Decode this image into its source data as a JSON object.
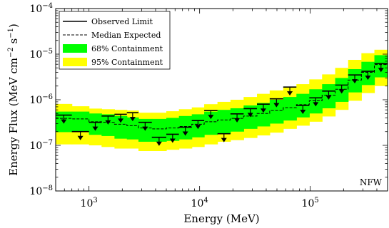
{
  "chart_data": {
    "type": "line",
    "x_scale": "log",
    "y_scale": "log",
    "xlim": [
      500,
      500000
    ],
    "ylim": [
      1e-08,
      0.0001
    ],
    "xlabel": "Energy (MeV)",
    "ylabel": {
      "main": "Energy Flux (MeV cm",
      "exp1": "−2",
      "mid": " s",
      "exp2": "−1",
      "end": ")"
    },
    "annotation": "NFW",
    "x_ticks": [
      {
        "value": 1000,
        "base": "10",
        "exp": "3"
      },
      {
        "value": 10000,
        "base": "10",
        "exp": "4"
      },
      {
        "value": 100000,
        "base": "10",
        "exp": "5"
      }
    ],
    "y_ticks": [
      {
        "value": 1e-08,
        "base": "10",
        "exp": "−8"
      },
      {
        "value": 1e-07,
        "base": "10",
        "exp": "−7"
      },
      {
        "value": 1e-06,
        "base": "10",
        "exp": "−6"
      },
      {
        "value": 1e-05,
        "base": "10",
        "exp": "−5"
      },
      {
        "value": 0.0001,
        "base": "10",
        "exp": "−4"
      }
    ],
    "legend": {
      "position": "top-left",
      "entries": [
        {
          "label": "Observed Limit",
          "style": "solid"
        },
        {
          "label": "Median Expected",
          "style": "dashed"
        },
        {
          "label": "68% Containment",
          "style": "band",
          "color": "#00ff00"
        },
        {
          "label": "95% Containment",
          "style": "band",
          "color": "#ffff00"
        }
      ]
    },
    "bins": [
      {
        "lo": 500,
        "hi": 700,
        "observed": 4.6e-07,
        "median": 3.9e-07,
        "b68_lo": 1.95e-07,
        "b68_hi": 5.5e-07,
        "b95_lo": 1.05e-07,
        "b95_hi": 8.1e-07
      },
      {
        "lo": 700,
        "hi": 1000,
        "observed": 2e-07,
        "median": 3.8e-07,
        "b68_lo": 1.95e-07,
        "b68_hi": 5.5e-07,
        "b95_lo": 1.05e-07,
        "b95_hi": 7.2e-07
      },
      {
        "lo": 1000,
        "hi": 1300,
        "observed": 3.2e-07,
        "median": 3.3e-07,
        "b68_lo": 1.7e-07,
        "b68_hi": 5e-07,
        "b95_lo": 1e-07,
        "b95_hi": 6.4e-07
      },
      {
        "lo": 1300,
        "hi": 1700,
        "observed": 4.4e-07,
        "median": 3.2e-07,
        "b68_lo": 1.6e-07,
        "b68_hi": 4.8e-07,
        "b95_lo": 9.2e-08,
        "b95_hi": 6.2e-07
      },
      {
        "lo": 1700,
        "hi": 2200,
        "observed": 4.8e-07,
        "median": 2.9e-07,
        "b68_lo": 1.4e-07,
        "b68_hi": 4.4e-07,
        "b95_lo": 8.5e-08,
        "b95_hi": 6e-07
      },
      {
        "lo": 2200,
        "hi": 2800,
        "observed": 5.2e-07,
        "median": 2.7e-07,
        "b68_lo": 1.35e-07,
        "b68_hi": 4.1e-07,
        "b95_lo": 8.5e-08,
        "b95_hi": 5.8e-07
      },
      {
        "lo": 2800,
        "hi": 3700,
        "observed": 3.2e-07,
        "median": 2.4e-07,
        "b68_lo": 1.2e-07,
        "b68_hi": 3.8e-07,
        "b95_lo": 7.5e-08,
        "b95_hi": 5.2e-07
      },
      {
        "lo": 3700,
        "hi": 5000,
        "observed": 1.5e-07,
        "median": 2.3e-07,
        "b68_lo": 1.2e-07,
        "b68_hi": 3.8e-07,
        "b95_lo": 7.5e-08,
        "b95_hi": 5.2e-07
      },
      {
        "lo": 5000,
        "hi": 6500,
        "observed": 1.75e-07,
        "median": 2.4e-07,
        "b68_lo": 1.25e-07,
        "b68_hi": 4e-07,
        "b95_lo": 8e-08,
        "b95_hi": 5.6e-07
      },
      {
        "lo": 6500,
        "hi": 8500,
        "observed": 2.5e-07,
        "median": 2.6e-07,
        "b68_lo": 1.35e-07,
        "b68_hi": 4.4e-07,
        "b95_lo": 8.5e-08,
        "b95_hi": 6.2e-07
      },
      {
        "lo": 8500,
        "hi": 11000,
        "observed": 3.5e-07,
        "median": 2.9e-07,
        "b68_lo": 1.5e-07,
        "b68_hi": 4.8e-07,
        "b95_lo": 9.2e-08,
        "b95_hi": 6.8e-07
      },
      {
        "lo": 11000,
        "hi": 14500,
        "observed": 5.8e-07,
        "median": 3.3e-07,
        "b68_lo": 1.7e-07,
        "b68_hi": 5.5e-07,
        "b95_lo": 1.05e-07,
        "b95_hi": 8e-07
      },
      {
        "lo": 14500,
        "hi": 19000,
        "observed": 1.8e-07,
        "median": 3.6e-07,
        "b68_lo": 1.8e-07,
        "b68_hi": 6e-07,
        "b95_lo": 1.2e-07,
        "b95_hi": 9e-07
      },
      {
        "lo": 19000,
        "hi": 25000,
        "observed": 4.9e-07,
        "median": 3.9e-07,
        "b68_lo": 2e-07,
        "b68_hi": 6.5e-07,
        "b95_lo": 1.3e-07,
        "b95_hi": 1e-06
      },
      {
        "lo": 25000,
        "hi": 33000,
        "observed": 6.4e-07,
        "median": 4.4e-07,
        "b68_lo": 2.3e-07,
        "b68_hi": 7.5e-07,
        "b95_lo": 1.45e-07,
        "b95_hi": 1.15e-06
      },
      {
        "lo": 33000,
        "hi": 43000,
        "observed": 8e-07,
        "median": 5e-07,
        "b68_lo": 2.6e-07,
        "b68_hi": 8.5e-07,
        "b95_lo": 1.65e-07,
        "b95_hi": 1.35e-06
      },
      {
        "lo": 43000,
        "hi": 57000,
        "observed": 1.05e-06,
        "median": 5.8e-07,
        "b68_lo": 3e-07,
        "b68_hi": 1e-06,
        "b95_lo": 1.9e-07,
        "b95_hi": 1.6e-06
      },
      {
        "lo": 57000,
        "hi": 75000,
        "observed": 1.9e-06,
        "median": 6.7e-07,
        "b68_lo": 3.5e-07,
        "b68_hi": 1.15e-06,
        "b95_lo": 2.3e-07,
        "b95_hi": 1.85e-06
      },
      {
        "lo": 75000,
        "hi": 98000,
        "observed": 7.5e-07,
        "median": 7.8e-07,
        "b68_lo": 4.1e-07,
        "b68_hi": 1.35e-06,
        "b95_lo": 2.7e-07,
        "b95_hi": 2.2e-06
      },
      {
        "lo": 98000,
        "hi": 128000,
        "observed": 1.1e-06,
        "median": 9.5e-07,
        "b68_lo": 5e-07,
        "b68_hi": 1.7e-06,
        "b95_lo": 3.3e-07,
        "b95_hi": 2.8e-06
      },
      {
        "lo": 128000,
        "hi": 168000,
        "observed": 1.55e-06,
        "median": 1.25e-06,
        "b68_lo": 6.5e-07,
        "b68_hi": 2.2e-06,
        "b95_lo": 4.3e-07,
        "b95_hi": 3.6e-06
      },
      {
        "lo": 168000,
        "hi": 220000,
        "observed": 2.1e-06,
        "median": 1.7e-06,
        "b68_lo": 9e-07,
        "b68_hi": 3e-06,
        "b95_lo": 6e-07,
        "b95_hi": 5e-06
      },
      {
        "lo": 220000,
        "hi": 290000,
        "observed": 3.5e-06,
        "median": 2.7e-06,
        "b68_lo": 1.45e-06,
        "b68_hi": 4.7e-06,
        "b95_lo": 9.5e-07,
        "b95_hi": 7.5e-06
      },
      {
        "lo": 290000,
        "hi": 380000,
        "observed": 4.2e-06,
        "median": 4e-06,
        "b68_lo": 2.1e-06,
        "b68_hi": 6.8e-06,
        "b95_lo": 1.4e-06,
        "b95_hi": 1.05e-05
      },
      {
        "lo": 380000,
        "hi": 500000,
        "observed": 6.2e-06,
        "median": 5.9e-06,
        "b68_lo": 3.1e-06,
        "b68_hi": 9.5e-06,
        "b95_lo": 2e-06,
        "b95_hi": 1.25e-05
      }
    ]
  }
}
